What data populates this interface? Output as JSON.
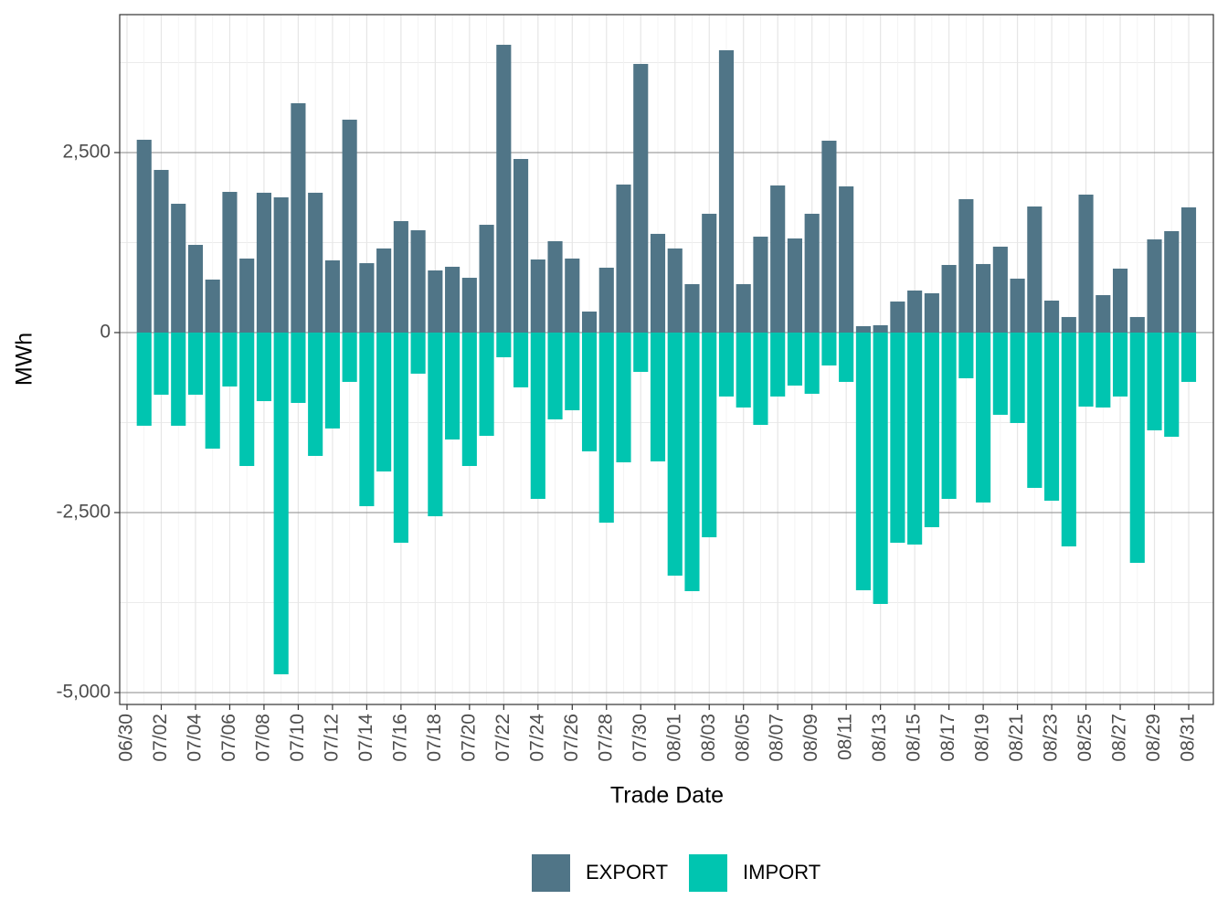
{
  "chart_data": {
    "type": "bar",
    "x_label": "Trade Date",
    "y_label": "MWh",
    "categories": [
      "06/30",
      null,
      "07/02",
      null,
      "07/04",
      null,
      "07/06",
      null,
      "07/08",
      null,
      "07/10",
      null,
      "07/12",
      null,
      "07/14",
      null,
      "07/16",
      null,
      "07/18",
      null,
      "07/20",
      null,
      "07/22",
      null,
      "07/24",
      null,
      "07/26",
      null,
      "07/28",
      null,
      "07/30",
      null,
      "08/01",
      null,
      "08/03",
      null,
      "08/05",
      null,
      "08/07",
      null,
      "08/09",
      null,
      "08/11",
      null,
      "08/13",
      null,
      "08/15",
      null,
      "08/17",
      null,
      "08/19",
      null,
      "08/21",
      null,
      "08/23",
      null,
      "08/25",
      null,
      "08/27",
      null,
      "08/29",
      null,
      "08/31"
    ],
    "series": [
      {
        "name": "EXPORT",
        "color": "#507587",
        "values": [
          null,
          2678,
          2259,
          1789,
          1218,
          736,
          1954,
          1028,
          1942,
          1878,
          3185,
          1942,
          1003,
          2957,
          964,
          1168,
          1548,
          1421,
          863,
          914,
          761,
          1497,
          3997,
          2411,
          1015,
          1269,
          1028,
          292,
          901,
          2056,
          3731,
          1371,
          1168,
          673,
          1650,
          3921,
          673,
          1332,
          2043,
          1307,
          1650,
          2665,
          2030,
          89,
          102,
          431,
          584,
          546,
          939,
          1853,
          952,
          1193,
          749,
          1751,
          444,
          216,
          1916,
          520,
          888,
          216,
          1294,
          1409,
          1739
        ]
      },
      {
        "name": "IMPORT",
        "color": "#00c5b0",
        "values": [
          null,
          -1294,
          -863,
          -1294,
          -863,
          -1612,
          -749,
          -1853,
          -952,
          -4746,
          -977,
          -1713,
          -1332,
          -685,
          -2411,
          -1929,
          -2919,
          -571,
          -2551,
          -1485,
          -1853,
          -1434,
          -343,
          -761,
          -2310,
          -1206,
          -1079,
          -1650,
          -2640,
          -1802,
          -546,
          -1789,
          -3376,
          -3591,
          -2843,
          -888,
          -1041,
          -1282,
          -888,
          -736,
          -850,
          -457,
          -685,
          -3579,
          -3769,
          -2919,
          -2944,
          -2703,
          -2310,
          -635,
          -2360,
          -1142,
          -1256,
          -2157,
          -2335,
          -2970,
          -1028,
          -1041,
          -888,
          -3198,
          -1358,
          -1447,
          -685
        ]
      }
    ],
    "ylim": [
      -5165,
      4416
    ],
    "yticks": [
      {
        "value": -5000,
        "label": "-5,000"
      },
      {
        "value": -2500,
        "label": "-2,500"
      },
      0,
      {
        "value": 2500,
        "label": "2,500"
      }
    ],
    "grid": true,
    "legend": "bottom"
  }
}
